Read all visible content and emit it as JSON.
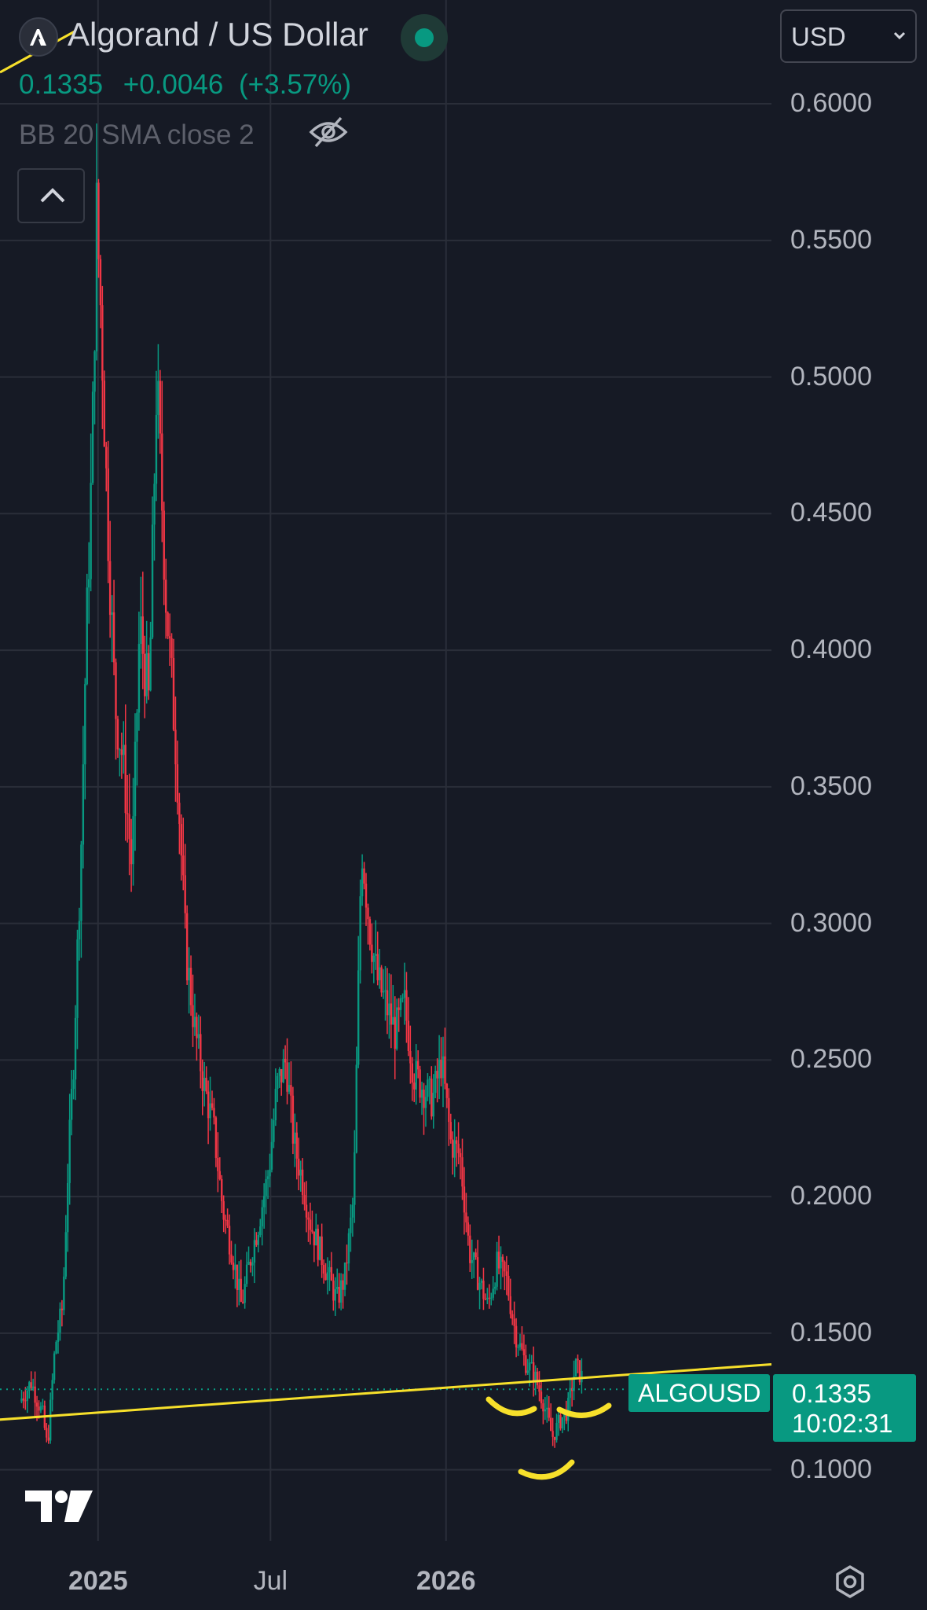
{
  "header": {
    "symbol_title": "Algorand / US Dollar",
    "last_price": "0.1335",
    "change": "+0.0046",
    "change_pct": "(+3.57%)",
    "indicator_label": "BB 20 SMA close 2",
    "currency": "USD"
  },
  "icons": [
    "algorand-logo-icon",
    "live-status-dot",
    "eye-off-icon",
    "chevron-up-icon",
    "chevron-down-icon",
    "tradingview-logo-icon",
    "settings-icon"
  ],
  "colors": {
    "background": "#161a25",
    "up": "#089981",
    "down": "#f23645",
    "grid": "#2a2e39",
    "trendline": "#f7e02b",
    "axis_text": "#b2b5be"
  },
  "price_axis": {
    "labels": [
      "0.6000",
      "0.5500",
      "0.5000",
      "0.4500",
      "0.4000",
      "0.3500",
      "0.3000",
      "0.2500",
      "0.2000",
      "0.1500",
      "0.1000"
    ]
  },
  "time_axis": {
    "labels": [
      {
        "text": "2025",
        "bold": true
      },
      {
        "text": "Jul",
        "bold": false
      },
      {
        "text": "2026",
        "bold": true
      }
    ]
  },
  "price_tag": {
    "symbol": "ALGOUSD",
    "price": "0.1335",
    "countdown": "10:02:31"
  },
  "chart_data": {
    "type": "line",
    "title": "Algorand / US Dollar",
    "xlabel": "",
    "ylabel": "",
    "ylim": [
      0.074,
      0.638
    ],
    "x_ticks": [
      "2025",
      "Jul",
      "2026"
    ],
    "y_ticks": [
      0.1,
      0.15,
      0.2,
      0.25,
      0.3,
      0.35,
      0.4,
      0.45,
      0.5,
      0.55,
      0.6
    ],
    "grid": true,
    "last_price": 0.1335,
    "series": [
      {
        "values": [
          [
            0.0,
            0.125
          ],
          [
            1.5,
            0.132
          ],
          [
            3.0,
            0.12
          ],
          [
            3.6,
            0.108
          ],
          [
            4.6,
            0.145
          ],
          [
            5.6,
            0.16
          ],
          [
            6.2,
            0.205
          ],
          [
            7.0,
            0.25
          ],
          [
            8.0,
            0.33
          ],
          [
            8.6,
            0.4
          ],
          [
            9.4,
            0.47
          ],
          [
            10.0,
            0.56
          ],
          [
            10.6,
            0.52
          ],
          [
            11.4,
            0.45
          ],
          [
            12.4,
            0.38
          ],
          [
            13.4,
            0.36
          ],
          [
            14.6,
            0.32
          ],
          [
            15.6,
            0.41
          ],
          [
            16.8,
            0.38
          ],
          [
            17.8,
            0.5
          ],
          [
            19.0,
            0.42
          ],
          [
            20.4,
            0.36
          ],
          [
            21.6,
            0.29
          ],
          [
            22.8,
            0.26
          ],
          [
            24.0,
            0.24
          ],
          [
            25.2,
            0.225
          ],
          [
            26.4,
            0.195
          ],
          [
            27.6,
            0.18
          ],
          [
            28.8,
            0.16
          ],
          [
            29.8,
            0.175
          ],
          [
            31.0,
            0.19
          ],
          [
            32.4,
            0.21
          ],
          [
            33.4,
            0.24
          ],
          [
            34.6,
            0.25
          ],
          [
            35.6,
            0.22
          ],
          [
            36.8,
            0.205
          ],
          [
            37.8,
            0.19
          ],
          [
            39.0,
            0.18
          ],
          [
            40.2,
            0.17
          ],
          [
            41.2,
            0.162
          ],
          [
            42.2,
            0.17
          ],
          [
            43.4,
            0.2
          ],
          [
            44.4,
            0.33
          ],
          [
            45.4,
            0.3
          ],
          [
            46.4,
            0.28
          ],
          [
            47.6,
            0.27
          ],
          [
            48.8,
            0.26
          ],
          [
            50.0,
            0.27
          ],
          [
            51.2,
            0.245
          ],
          [
            52.4,
            0.24
          ],
          [
            53.6,
            0.235
          ],
          [
            54.8,
            0.25
          ],
          [
            56.0,
            0.22
          ],
          [
            57.2,
            0.215
          ],
          [
            58.4,
            0.18
          ],
          [
            59.6,
            0.17
          ],
          [
            60.8,
            0.16
          ],
          [
            62.0,
            0.175
          ],
          [
            63.2,
            0.17
          ],
          [
            64.4,
            0.15
          ],
          [
            65.6,
            0.14
          ],
          [
            66.8,
            0.135
          ],
          [
            68.0,
            0.125
          ],
          [
            69.2,
            0.112
          ],
          [
            70.2,
            0.118
          ],
          [
            71.2,
            0.122
          ],
          [
            72.2,
            0.138
          ],
          [
            73.2,
            0.133
          ]
        ]
      }
    ],
    "trendline": {
      "points": [
        [
          -8,
          0.1
        ],
        [
          101,
          0.115
        ]
      ]
    }
  }
}
